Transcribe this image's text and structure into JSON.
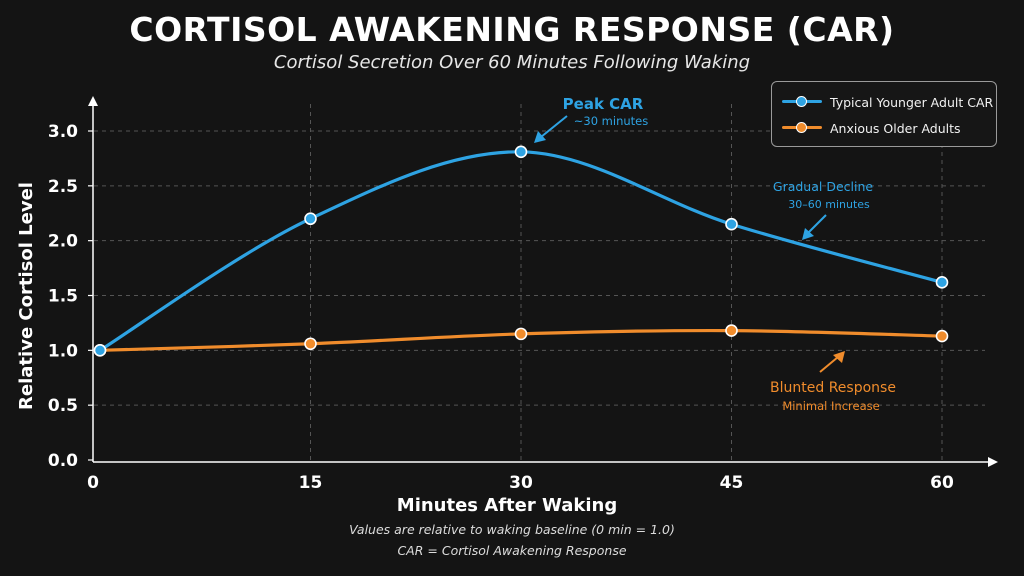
{
  "title": "CORTISOL AWAKENING RESPONSE (CAR)",
  "subtitle": "Cortisol Secretion Over 60 Minutes Following Waking",
  "colors": {
    "background": "#141414",
    "typical": "#2ea3e3",
    "anxious": "#f08c2c",
    "grid": "#555555",
    "axis": "#ffffff"
  },
  "legend": {
    "placement": "top-right",
    "items": [
      {
        "label": "Typical Younger Adult CAR",
        "color": "#2ea3e3"
      },
      {
        "label": "Anxious Older Adults",
        "color": "#f08c2c"
      }
    ]
  },
  "annotations": {
    "peak": {
      "title": "Peak CAR",
      "subtitle": "~30 minutes"
    },
    "decline": {
      "title": "Gradual Decline",
      "subtitle": "30–60 minutes"
    },
    "blunted": {
      "title": "Blunted Response",
      "subtitle": "Minimal Increase"
    }
  },
  "footnotes": [
    "Values are relative to waking baseline (0 min = 1.0)",
    "CAR  = Cortisol Awakening Response"
  ],
  "chart_data": {
    "type": "line",
    "title": "CORTISOL AWAKENING RESPONSE (CAR)",
    "subtitle": "Cortisol Secretion Over 60 Minutes Following Waking",
    "xlabel": "Minutes After Waking",
    "ylabel": "Relative Cortisol Level",
    "x": [
      0,
      15,
      30,
      45,
      60
    ],
    "xticks": [
      "0",
      "15",
      "30",
      "45",
      "60"
    ],
    "yticks": [
      "0.0",
      "0.5",
      "1.0",
      "1.5",
      "2.0",
      "2.5",
      "3.0"
    ],
    "xlim": [
      0,
      60
    ],
    "ylim": [
      0,
      3.0
    ],
    "grid": true,
    "series": [
      {
        "name": "Typical Younger Adult CAR",
        "values": [
          1.0,
          2.2,
          2.81,
          2.15,
          1.62
        ],
        "color": "#2ea3e3"
      },
      {
        "name": "Anxious Older Adults",
        "values": [
          1.0,
          1.06,
          1.15,
          1.18,
          1.13
        ],
        "color": "#f08c2c"
      }
    ]
  }
}
